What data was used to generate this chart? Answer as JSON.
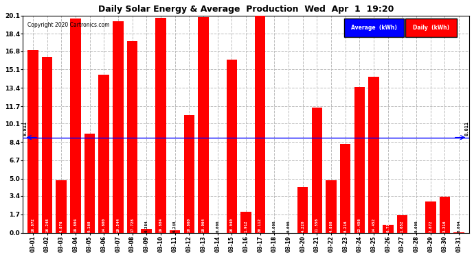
{
  "title": "Daily Solar Energy & Average  Production  Wed  Apr  1  19:20",
  "copyright": "Copyright 2020 Cartronics.com",
  "bar_color": "#FF0000",
  "average_line_color": "#0000FF",
  "average_value": 8.811,
  "categories": [
    "03-01",
    "03-02",
    "03-03",
    "03-04",
    "03-05",
    "03-06",
    "03-07",
    "03-08",
    "03-09",
    "03-10",
    "03-11",
    "03-12",
    "03-13",
    "03-14",
    "03-15",
    "03-16",
    "03-17",
    "03-18",
    "03-19",
    "03-20",
    "03-21",
    "03-22",
    "03-23",
    "03-24",
    "03-25",
    "03-26",
    "03-27",
    "03-28",
    "03-29",
    "03-30",
    "03-31"
  ],
  "values": [
    16.872,
    16.248,
    4.876,
    19.804,
    9.168,
    14.6,
    19.544,
    17.728,
    0.384,
    19.884,
    0.248,
    10.86,
    19.964,
    0.0,
    16.04,
    1.912,
    20.112,
    0.0,
    0.0,
    4.22,
    11.556,
    4.88,
    8.216,
    13.456,
    14.452,
    0.716,
    1.652,
    0.0,
    2.872,
    3.316,
    0.064
  ],
  "ylim": [
    0.0,
    20.1
  ],
  "yticks": [
    0.0,
    1.7,
    3.4,
    5.0,
    6.7,
    8.4,
    10.1,
    11.7,
    13.4,
    15.1,
    16.8,
    18.4,
    20.1
  ],
  "background_color": "#FFFFFF",
  "grid_color": "#BBBBBB",
  "legend_avg_bg": "#0000FF",
  "legend_daily_bg": "#FF0000",
  "legend_text_color": "#FFFFFF"
}
